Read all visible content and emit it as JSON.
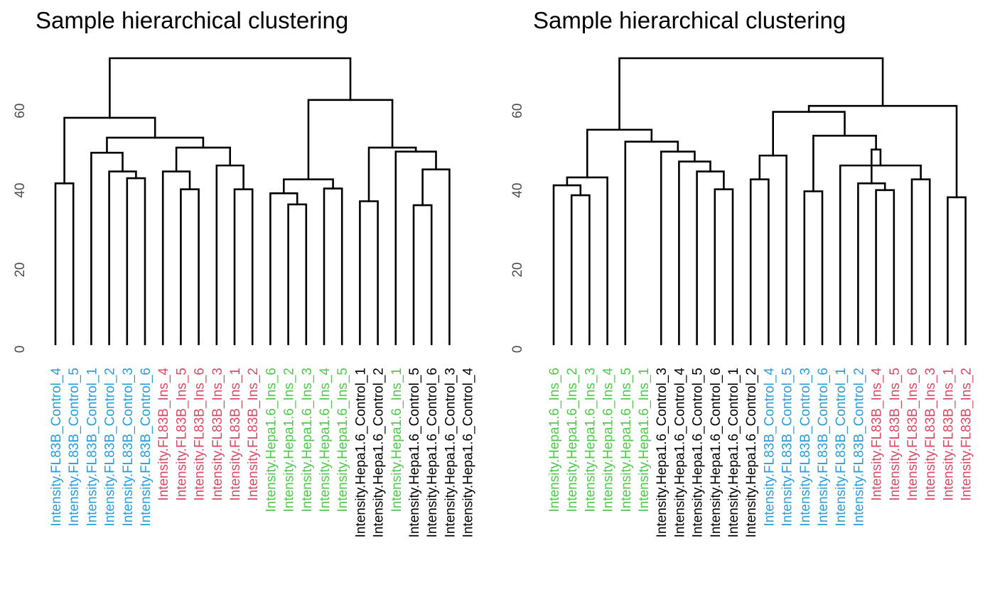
{
  "colors": {
    "FL83B_Control": "#2a9ddb",
    "FL83B_Ins": "#dc4a63",
    "Hepa1.6_Ins": "#4fc94a",
    "Hepa1.6_Control": "#000000"
  },
  "chart_data": [
    {
      "type": "dendrogram",
      "title": "Sample hierarchical clustering",
      "ylabel": "",
      "ylim": [
        0,
        72
      ],
      "yticks": [
        0,
        20,
        40,
        60
      ],
      "leaves": [
        {
          "label": "Intensity.FL83B_Control_4",
          "group": "FL83B_Control"
        },
        {
          "label": "Intensity.FL83B_Control_5",
          "group": "FL83B_Control"
        },
        {
          "label": "Intensity.FL83B_Control_1",
          "group": "FL83B_Control"
        },
        {
          "label": "Intensity.FL83B_Control_2",
          "group": "FL83B_Control"
        },
        {
          "label": "Intensity.FL83B_Control_3",
          "group": "FL83B_Control"
        },
        {
          "label": "Intensity.FL83B_Control_6",
          "group": "FL83B_Control"
        },
        {
          "label": "Intensity.FL83B_Ins_4",
          "group": "FL83B_Ins"
        },
        {
          "label": "Intensity.FL83B_Ins_5",
          "group": "FL83B_Ins"
        },
        {
          "label": "Intensity.FL83B_Ins_6",
          "group": "FL83B_Ins"
        },
        {
          "label": "Intensity.FL83B_Ins_3",
          "group": "FL83B_Ins"
        },
        {
          "label": "Intensity.FL83B_Ins_1",
          "group": "FL83B_Ins"
        },
        {
          "label": "Intensity.FL83B_Ins_2",
          "group": "FL83B_Ins"
        },
        {
          "label": "Intensity.Hepa1.6_Ins_6",
          "group": "Hepa1.6_Ins"
        },
        {
          "label": "Intensity.Hepa1.6_Ins_2",
          "group": "Hepa1.6_Ins"
        },
        {
          "label": "Intensity.Hepa1.6_Ins_3",
          "group": "Hepa1.6_Ins"
        },
        {
          "label": "Intensity.Hepa1.6_Ins_4",
          "group": "Hepa1.6_Ins"
        },
        {
          "label": "Intensity.Hepa1.6_Ins_5",
          "group": "Hepa1.6_Ins"
        },
        {
          "label": "Intensity.Hepa1.6_Control_1",
          "group": "Hepa1.6_Control"
        },
        {
          "label": "Intensity.Hepa1.6_Control_2",
          "group": "Hepa1.6_Control"
        },
        {
          "label": "Intensity.Hepa1.6_Ins_1",
          "group": "Hepa1.6_Ins"
        },
        {
          "label": "Intensity.Hepa1.6_Control_5",
          "group": "Hepa1.6_Control"
        },
        {
          "label": "Intensity.Hepa1.6_Control_6",
          "group": "Hepa1.6_Control"
        },
        {
          "label": "Intensity.Hepa1.6_Control_3",
          "group": "Hepa1.6_Control"
        },
        {
          "label": "Intensity.Hepa1.6_Control_4",
          "group": "Hepa1.6_Control"
        }
      ],
      "merges": [
        {
          "children": [
            "L0",
            "L1"
          ],
          "height": 40.5
        },
        {
          "children": [
            "L4",
            "L5"
          ],
          "height": 41.8
        },
        {
          "children": [
            "L3",
            "M1"
          ],
          "height": 43.5
        },
        {
          "children": [
            "L2",
            "M2"
          ],
          "height": 48.2
        },
        {
          "children": [
            "L7",
            "L8"
          ],
          "height": 39.0
        },
        {
          "children": [
            "L6",
            "M4"
          ],
          "height": 43.5
        },
        {
          "children": [
            "L10",
            "L11"
          ],
          "height": 39.0
        },
        {
          "children": [
            "L9",
            "M6"
          ],
          "height": 45.0
        },
        {
          "children": [
            "M5",
            "M7"
          ],
          "height": 49.5
        },
        {
          "children": [
            "M3",
            "M8"
          ],
          "height": 52.0
        },
        {
          "children": [
            "M0",
            "M9"
          ],
          "height": 57.0
        },
        {
          "children": [
            "L13",
            "L14"
          ],
          "height": 35.2
        },
        {
          "children": [
            "L12",
            "M11"
          ],
          "height": 38.0
        },
        {
          "children": [
            "L15",
            "L16"
          ],
          "height": 39.2
        },
        {
          "children": [
            "M12",
            "M13"
          ],
          "height": 41.5
        },
        {
          "children": [
            "L20",
            "L21"
          ],
          "height": 35.0
        },
        {
          "children": [
            "M15",
            "L22"
          ],
          "height": 44.0
        },
        {
          "children": [
            "L19",
            "M16"
          ],
          "height": 48.5
        },
        {
          "children": [
            "L18",
            "L17"
          ],
          "height": 36.0
        },
        {
          "children": [
            "M18",
            "M17"
          ],
          "height": 49.5
        },
        {
          "children": [
            "M14",
            "M19"
          ],
          "height": 61.5
        },
        {
          "children": [
            "M10",
            "M20"
          ],
          "height": 72.0
        }
      ]
    },
    {
      "type": "dendrogram",
      "title": "Sample hierarchical clustering",
      "ylabel": "",
      "ylim": [
        0,
        72
      ],
      "yticks": [
        0,
        20,
        40,
        60
      ],
      "leaves": [
        {
          "label": "Intensity.Hepa1.6_Ins_6",
          "group": "Hepa1.6_Ins"
        },
        {
          "label": "Intensity.Hepa1.6_Ins_2",
          "group": "Hepa1.6_Ins"
        },
        {
          "label": "Intensity.Hepa1.6_Ins_3",
          "group": "Hepa1.6_Ins"
        },
        {
          "label": "Intensity.Hepa1.6_Ins_4",
          "group": "Hepa1.6_Ins"
        },
        {
          "label": "Intensity.Hepa1.6_Ins_5",
          "group": "Hepa1.6_Ins"
        },
        {
          "label": "Intensity.Hepa1.6_Ins_1",
          "group": "Hepa1.6_Ins"
        },
        {
          "label": "Intensity.Hepa1.6_Control_3",
          "group": "Hepa1.6_Control"
        },
        {
          "label": "Intensity.Hepa1.6_Control_4",
          "group": "Hepa1.6_Control"
        },
        {
          "label": "Intensity.Hepa1.6_Control_5",
          "group": "Hepa1.6_Control"
        },
        {
          "label": "Intensity.Hepa1.6_Control_6",
          "group": "Hepa1.6_Control"
        },
        {
          "label": "Intensity.Hepa1.6_Control_1",
          "group": "Hepa1.6_Control"
        },
        {
          "label": "Intensity.Hepa1.6_Control_2",
          "group": "Hepa1.6_Control"
        },
        {
          "label": "Intensity.FL83B_Control_4",
          "group": "FL83B_Control"
        },
        {
          "label": "Intensity.FL83B_Control_5",
          "group": "FL83B_Control"
        },
        {
          "label": "Intensity.FL83B_Control_3",
          "group": "FL83B_Control"
        },
        {
          "label": "Intensity.FL83B_Control_6",
          "group": "FL83B_Control"
        },
        {
          "label": "Intensity.FL83B_Control_1",
          "group": "FL83B_Control"
        },
        {
          "label": "Intensity.FL83B_Control_2",
          "group": "FL83B_Control"
        },
        {
          "label": "Intensity.FL83B_Ins_4",
          "group": "FL83B_Ins"
        },
        {
          "label": "Intensity.FL83B_Ins_5",
          "group": "FL83B_Ins"
        },
        {
          "label": "Intensity.FL83B_Ins_6",
          "group": "FL83B_Ins"
        },
        {
          "label": "Intensity.FL83B_Ins_3",
          "group": "FL83B_Ins"
        },
        {
          "label": "Intensity.FL83B_Ins_1",
          "group": "FL83B_Ins"
        },
        {
          "label": "Intensity.FL83B_Ins_2",
          "group": "FL83B_Ins"
        }
      ],
      "merges": [
        {
          "children": [
            "L1",
            "L2"
          ],
          "height": 37.5
        },
        {
          "children": [
            "L0",
            "M0"
          ],
          "height": 40.0
        },
        {
          "children": [
            "M1",
            "L3"
          ],
          "height": 42.0
        },
        {
          "children": [
            "L9",
            "L10"
          ],
          "height": 39.0
        },
        {
          "children": [
            "L8",
            "M3"
          ],
          "height": 43.5
        },
        {
          "children": [
            "L7",
            "M4"
          ],
          "height": 46.0
        },
        {
          "children": [
            "L6",
            "M5"
          ],
          "height": 48.5
        },
        {
          "children": [
            "L4",
            "M6"
          ],
          "height": 51.0
        },
        {
          "children": [
            "M2",
            "M7"
          ],
          "height": 54.0
        },
        {
          "children": [
            "L11",
            "L12"
          ],
          "height": 41.5
        },
        {
          "children": [
            "M9",
            "L13"
          ],
          "height": 47.5
        },
        {
          "children": [
            "L14",
            "L15"
          ],
          "height": 38.5
        },
        {
          "children": [
            "L18",
            "L19"
          ],
          "height": 38.8
        },
        {
          "children": [
            "L17",
            "M12"
          ],
          "height": 40.5
        },
        {
          "children": [
            "L20",
            "L21"
          ],
          "height": 41.5
        },
        {
          "children": [
            "L16",
            "M14"
          ],
          "height": 45.0
        },
        {
          "children": [
            "M13",
            "M15"
          ],
          "height": 49.0
        },
        {
          "children": [
            "M11",
            "M16"
          ],
          "height": 52.5
        },
        {
          "children": [
            "M10",
            "M17"
          ],
          "height": 58.5
        },
        {
          "children": [
            "L22",
            "L23"
          ],
          "height": 37.0
        },
        {
          "children": [
            "M18",
            "M19"
          ],
          "height": 60.0
        },
        {
          "children": [
            "M8",
            "M20"
          ],
          "height": 72.0
        }
      ]
    }
  ]
}
